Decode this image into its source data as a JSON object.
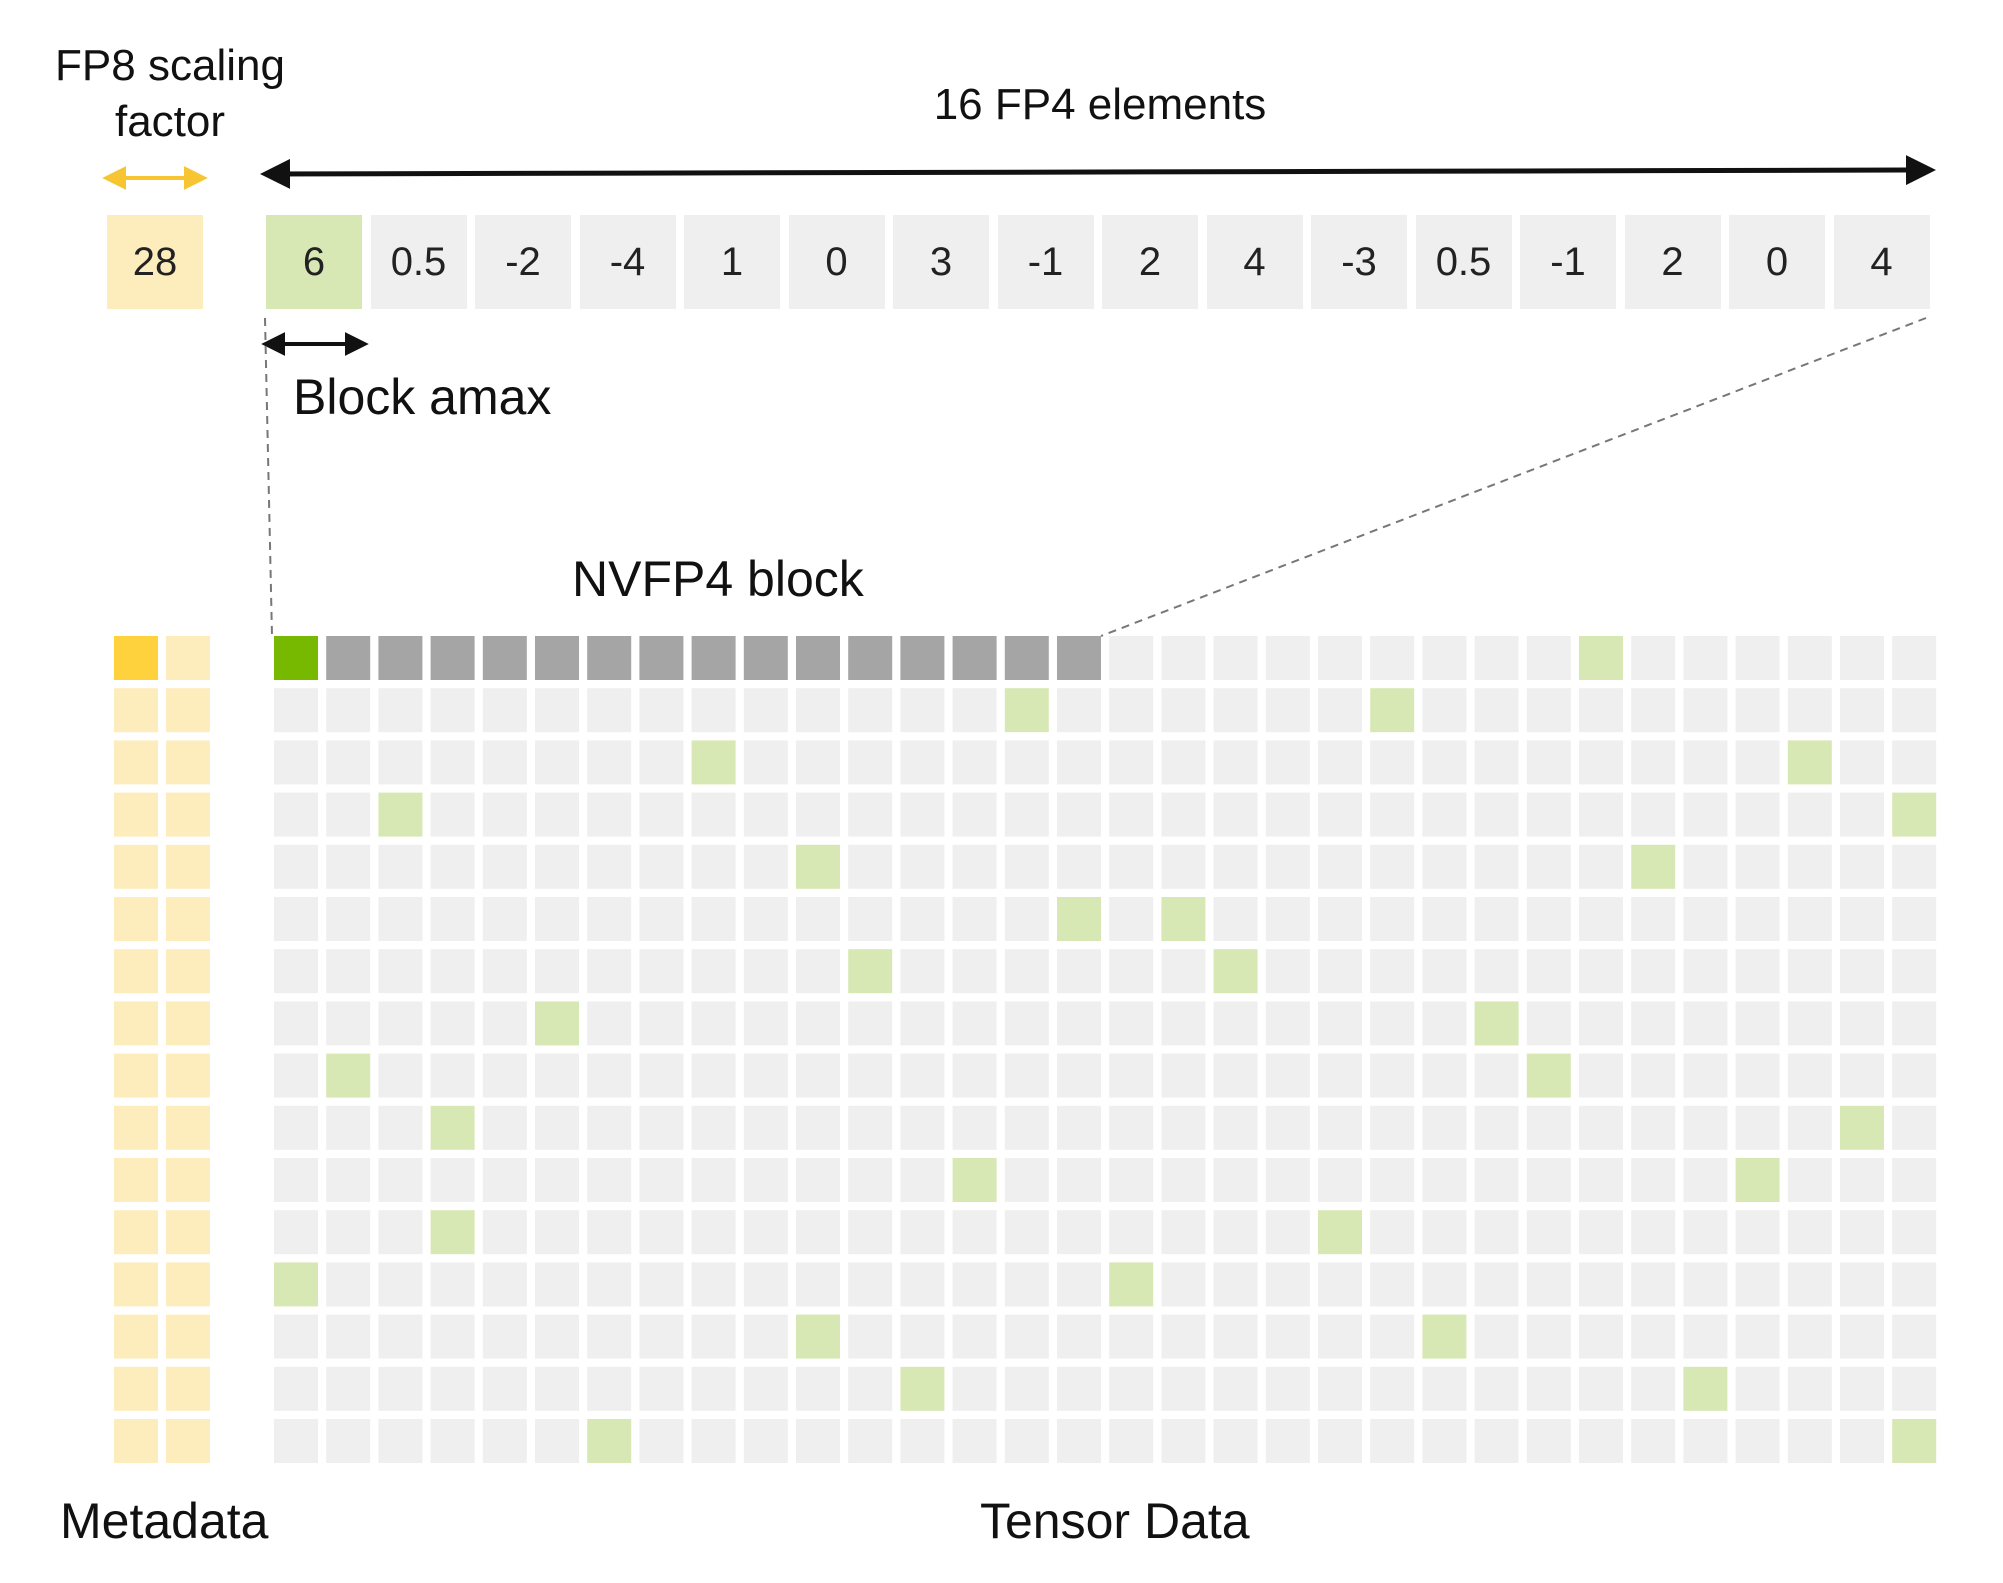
{
  "labels": {
    "scale_title": "FP8 scaling factor",
    "fp4_title": "16 FP4 elements",
    "amax": "Block amax",
    "block": "NVFP4 block",
    "metadata": "Metadata",
    "tensor": "Tensor Data"
  },
  "scaling_factor": "28",
  "fp4_values": [
    "6",
    "0.5",
    "-2",
    "-4",
    "1",
    "0",
    "3",
    "-1",
    "2",
    "4",
    "-3",
    "0.5",
    "-1",
    "2",
    "0",
    "4"
  ],
  "amax_index": 0,
  "grid": {
    "rows": 16,
    "cols": 32,
    "metadata_cols": 2,
    "selected_block_row": 0,
    "selected_block_size": 16,
    "highlighted": [
      [
        0,
        25
      ],
      [
        1,
        14
      ],
      [
        1,
        21
      ],
      [
        2,
        8
      ],
      [
        2,
        29
      ],
      [
        3,
        2
      ],
      [
        3,
        31
      ],
      [
        4,
        10
      ],
      [
        4,
        26
      ],
      [
        5,
        15
      ],
      [
        5,
        17
      ],
      [
        6,
        11
      ],
      [
        6,
        18
      ],
      [
        7,
        5
      ],
      [
        7,
        23
      ],
      [
        8,
        1
      ],
      [
        8,
        24
      ],
      [
        9,
        3
      ],
      [
        9,
        30
      ],
      [
        10,
        13
      ],
      [
        10,
        28
      ],
      [
        11,
        3
      ],
      [
        11,
        20
      ],
      [
        12,
        0
      ],
      [
        12,
        16
      ],
      [
        13,
        10
      ],
      [
        13,
        22
      ],
      [
        14,
        12
      ],
      [
        14,
        27
      ],
      [
        15,
        6
      ],
      [
        15,
        31
      ]
    ]
  },
  "colors": {
    "cell": "#efefef",
    "highlight": "#d8e8b4",
    "block": "#a5a5a5",
    "amax_cell": "#76b900",
    "metadata": "#fdedbd",
    "metadata_active": "#fdd23c",
    "scale_arrow": "#f6c531",
    "amax_value_cell": "#d8e8b4",
    "scale_cell": "#fdedbd"
  }
}
